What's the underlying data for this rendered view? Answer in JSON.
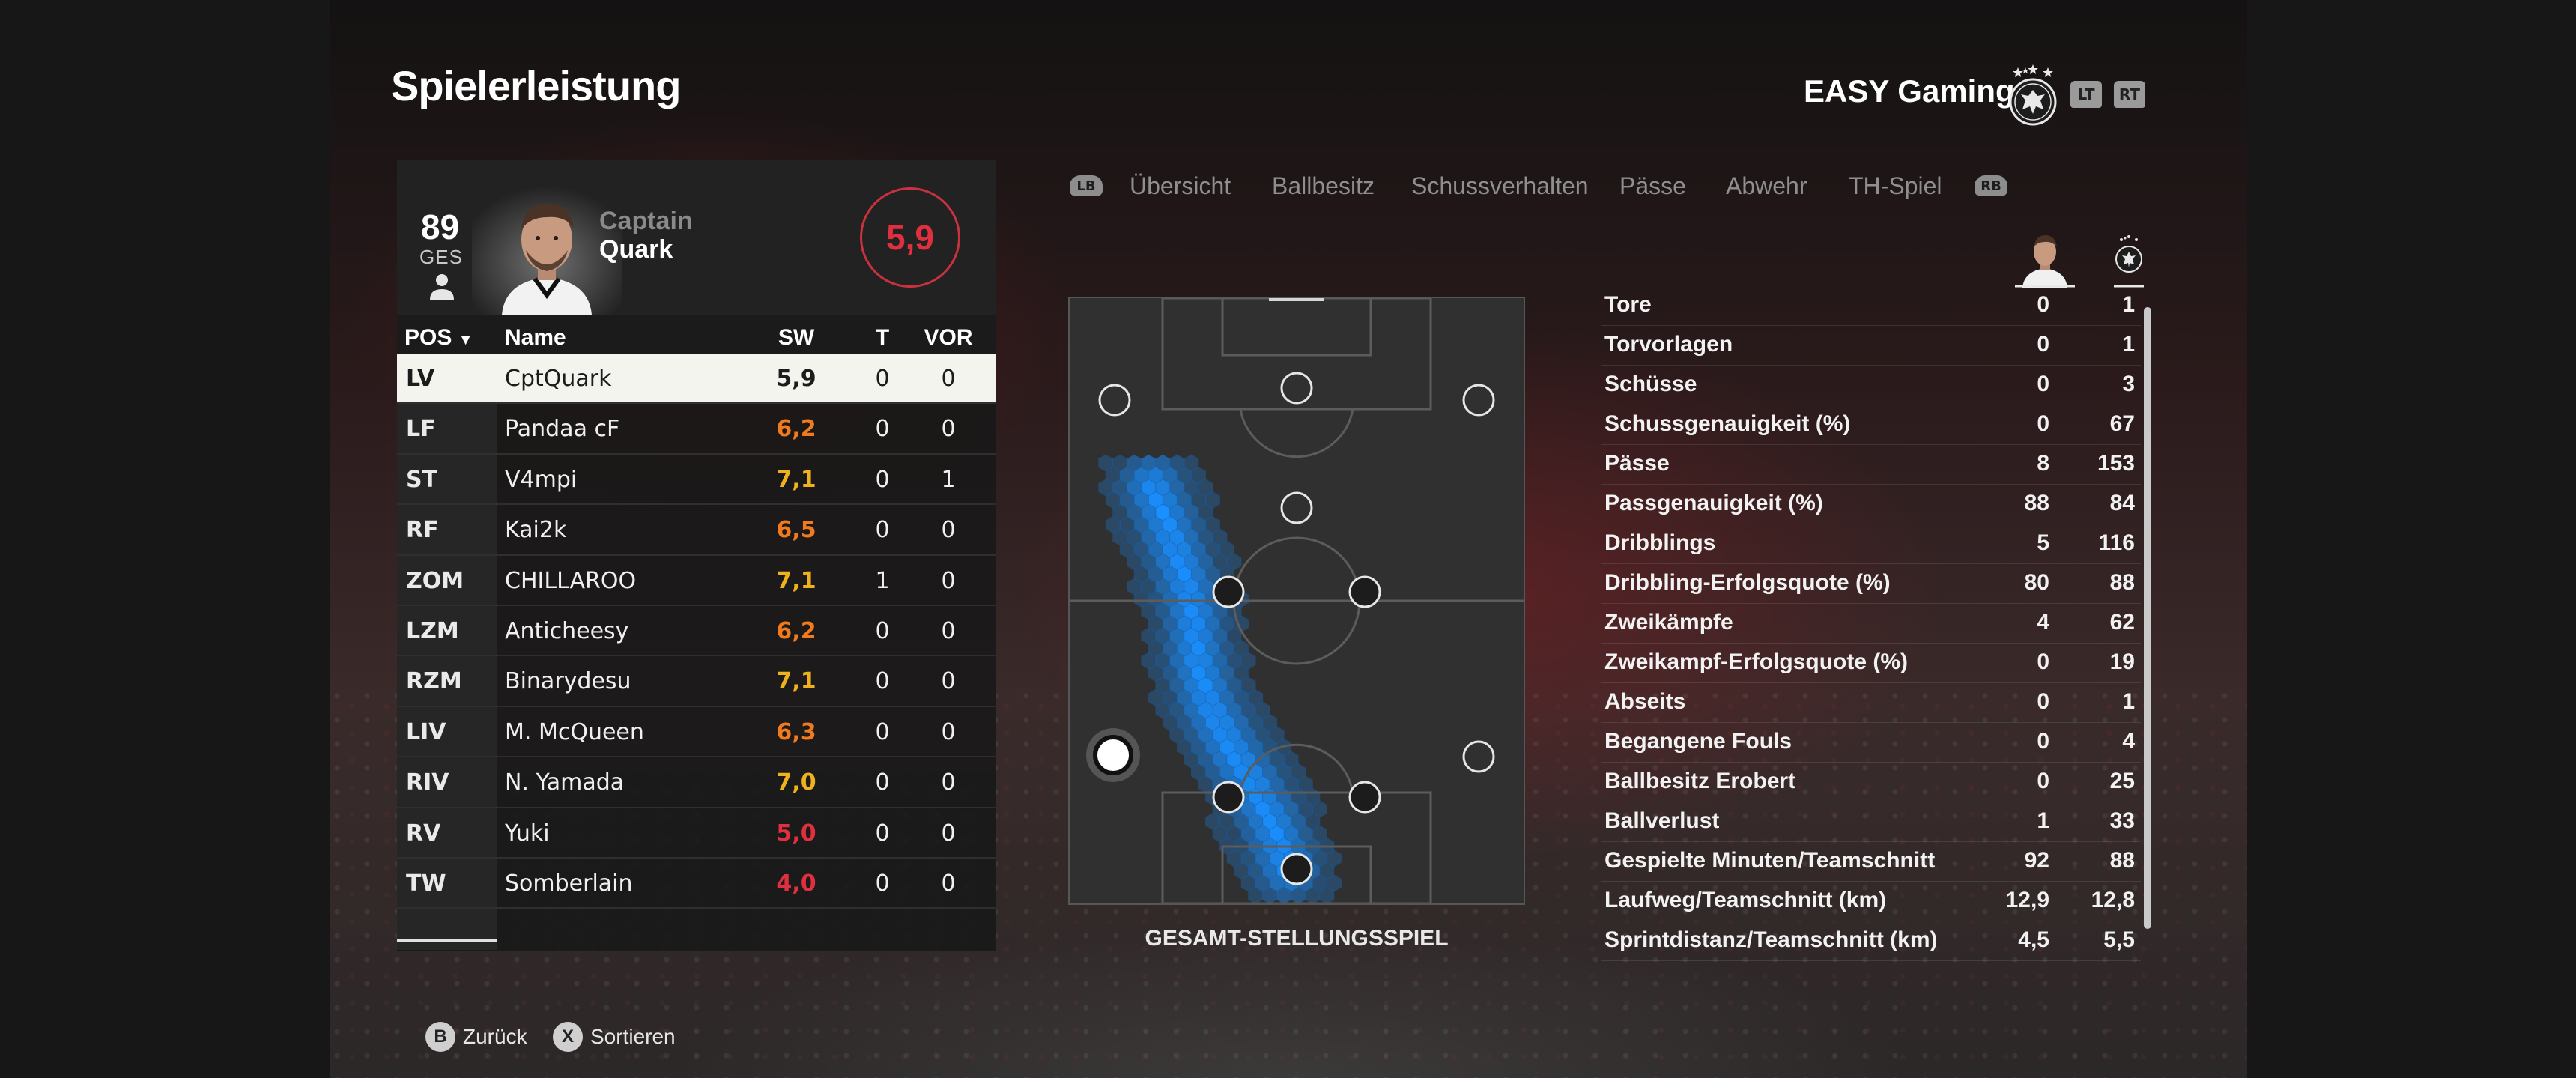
{
  "header": {
    "title": "Spielerleistung",
    "club_name": "EASY Gaming",
    "lt_label": "LT",
    "rt_label": "RT"
  },
  "player": {
    "overall": "89",
    "overall_label": "GES",
    "first_name": "Captain",
    "last_name": "Quark",
    "match_rating": "5,9"
  },
  "table": {
    "columns": {
      "pos": "POS",
      "name": "Name",
      "sw": "SW",
      "t": "T",
      "vor": "VOR"
    },
    "sort_indicator": "▼",
    "rows": [
      {
        "pos": "LV",
        "name": "CptQuark",
        "sw": "5,9",
        "t": "0",
        "vor": "0",
        "sw_color": "#1c1c1c"
      },
      {
        "pos": "LF",
        "name": "Pandaa cF",
        "sw": "6,2",
        "t": "0",
        "vor": "0",
        "sw_color": "#f07a1c"
      },
      {
        "pos": "ST",
        "name": "V4mpi",
        "sw": "7,1",
        "t": "0",
        "vor": "1",
        "sw_color": "#f0b21c"
      },
      {
        "pos": "RF",
        "name": "Kai2k",
        "sw": "6,5",
        "t": "0",
        "vor": "0",
        "sw_color": "#f07a1c"
      },
      {
        "pos": "ZOM",
        "name": "CHILLAROO",
        "sw": "7,1",
        "t": "1",
        "vor": "0",
        "sw_color": "#f0b21c"
      },
      {
        "pos": "LZM",
        "name": "Anticheesy",
        "sw": "6,2",
        "t": "0",
        "vor": "0",
        "sw_color": "#f07a1c"
      },
      {
        "pos": "RZM",
        "name": "Binarydesu",
        "sw": "7,1",
        "t": "0",
        "vor": "0",
        "sw_color": "#f0b21c"
      },
      {
        "pos": "LIV",
        "name": "M. McQueen",
        "sw": "6,3",
        "t": "0",
        "vor": "0",
        "sw_color": "#f07a1c"
      },
      {
        "pos": "RIV",
        "name": "N. Yamada",
        "sw": "7,0",
        "t": "0",
        "vor": "0",
        "sw_color": "#f0b21c"
      },
      {
        "pos": "RV",
        "name": "Yuki",
        "sw": "5,0",
        "t": "0",
        "vor": "0",
        "sw_color": "#e0303f"
      },
      {
        "pos": "TW",
        "name": "Somberlain",
        "sw": "4,0",
        "t": "0",
        "vor": "0",
        "sw_color": "#e0303f"
      }
    ]
  },
  "tabs": {
    "lb": "LB",
    "rb": "RB",
    "items": [
      {
        "label": "Übersicht",
        "active": true
      },
      {
        "label": "Ballbesitz",
        "active": false
      },
      {
        "label": "Schussverhalten",
        "active": false
      },
      {
        "label": "Pässe",
        "active": false
      },
      {
        "label": "Abwehr",
        "active": false
      },
      {
        "label": "TH-Spiel",
        "active": false
      }
    ]
  },
  "pitch": {
    "caption": "GESAMT-STELLUNGSSPIEL",
    "heatmap_color": "#1a8fff"
  },
  "stats": [
    {
      "label": "Tore",
      "player": "0",
      "team": "1"
    },
    {
      "label": "Torvorlagen",
      "player": "0",
      "team": "1"
    },
    {
      "label": "Schüsse",
      "player": "0",
      "team": "3"
    },
    {
      "label": "Schussgenauigkeit (%)",
      "player": "0",
      "team": "67"
    },
    {
      "label": "Pässe",
      "player": "8",
      "team": "153"
    },
    {
      "label": "Passgenauigkeit (%)",
      "player": "88",
      "team": "84"
    },
    {
      "label": "Dribblings",
      "player": "5",
      "team": "116"
    },
    {
      "label": "Dribbling-Erfolgsquote (%)",
      "player": "80",
      "team": "88"
    },
    {
      "label": "Zweikämpfe",
      "player": "4",
      "team": "62"
    },
    {
      "label": "Zweikampf-Erfolgsquote (%)",
      "player": "0",
      "team": "19"
    },
    {
      "label": "Abseits",
      "player": "0",
      "team": "1"
    },
    {
      "label": "Begangene Fouls",
      "player": "0",
      "team": "4"
    },
    {
      "label": "Ballbesitz Erobert",
      "player": "0",
      "team": "25"
    },
    {
      "label": "Ballverlust",
      "player": "1",
      "team": "33"
    },
    {
      "label": "Gespielte Minuten/Teamschnitt",
      "player": "92",
      "team": "88"
    },
    {
      "label": "Laufweg/Teamschnitt (km)",
      "player": "12,9",
      "team": "12,8"
    },
    {
      "label": "Sprintdistanz/Teamschnitt (km)",
      "player": "4,5",
      "team": "5,5"
    }
  ],
  "footer": {
    "back_button": "B",
    "back_label": "Zurück",
    "sort_button": "X",
    "sort_label": "Sortieren"
  },
  "colors": {
    "rating_red": "#e0303f",
    "rating_orange": "#f07a1c",
    "rating_yellow": "#f0b21c",
    "selected_row": "#f4f4ee"
  }
}
